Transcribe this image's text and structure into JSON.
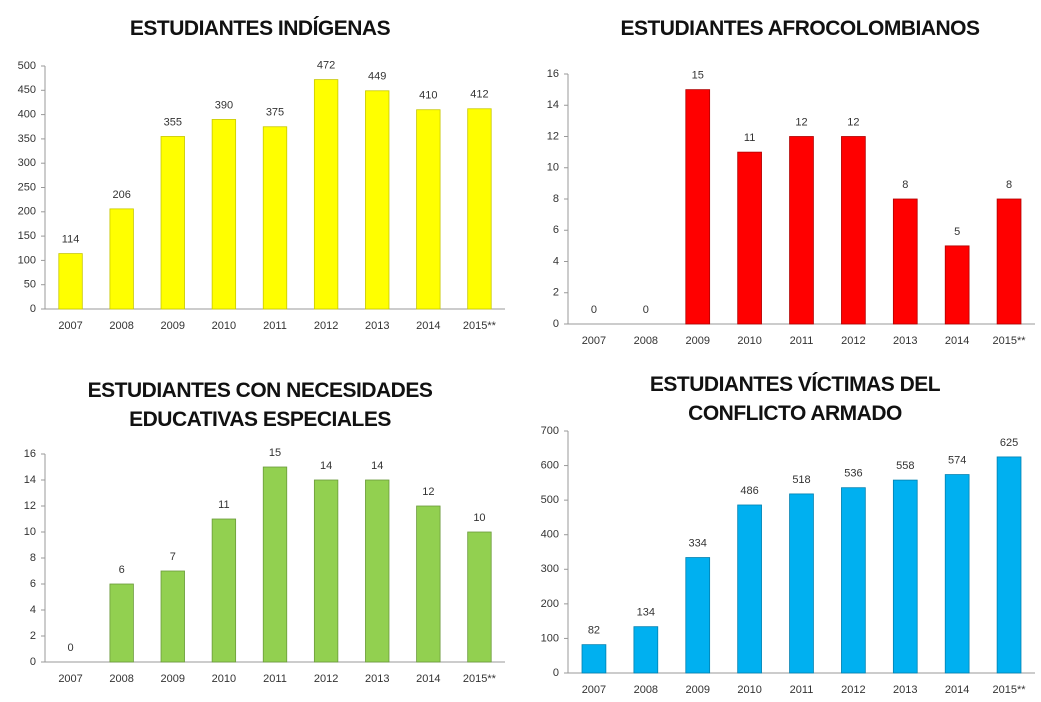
{
  "chart_data": [
    {
      "type": "bar",
      "title": "ESTUDIANTES INDÍGENAS",
      "categories": [
        "2007",
        "2008",
        "2009",
        "2010",
        "2011",
        "2012",
        "2013",
        "2014",
        "2015**"
      ],
      "values": [
        114,
        206,
        355,
        390,
        375,
        472,
        449,
        410,
        412
      ],
      "color": "#ffff00",
      "ylim": [
        0,
        500
      ],
      "yticks": [
        0,
        50,
        100,
        150,
        200,
        250,
        300,
        350,
        400,
        450,
        500
      ]
    },
    {
      "type": "bar",
      "title": "ESTUDIANTES AFROCOLOMBIANOS",
      "categories": [
        "2007",
        "2008",
        "2009",
        "2010",
        "2011",
        "2012",
        "2013",
        "2014",
        "2015**"
      ],
      "values": [
        0,
        0,
        15,
        11,
        12,
        12,
        8,
        5,
        8
      ],
      "color": "#ff0000",
      "ylim": [
        0,
        16
      ],
      "yticks": [
        0,
        2,
        4,
        6,
        8,
        10,
        12,
        14,
        16
      ]
    },
    {
      "type": "bar",
      "title": "ESTUDIANTES CON NECESIDADES EDUCATIVAS ESPECIALES",
      "categories": [
        "2007",
        "2008",
        "2009",
        "2010",
        "2011",
        "2012",
        "2013",
        "2014",
        "2015**"
      ],
      "values": [
        0,
        6,
        7,
        11,
        15,
        14,
        14,
        12,
        10
      ],
      "color": "#92d050",
      "ylim": [
        0,
        16
      ],
      "yticks": [
        0,
        2,
        4,
        6,
        8,
        10,
        12,
        14,
        16
      ]
    },
    {
      "type": "bar",
      "title": "ESTUDIANTES VÍCTIMAS DEL CONFLICTO ARMADO",
      "categories": [
        "2007",
        "2008",
        "2009",
        "2010",
        "2011",
        "2012",
        "2013",
        "2014",
        "2015**"
      ],
      "values": [
        82,
        134,
        334,
        486,
        518,
        536,
        558,
        574,
        625
      ],
      "color": "#00b0f0",
      "ylim": [
        0,
        700
      ],
      "yticks": [
        0,
        100,
        200,
        300,
        400,
        500,
        600,
        700
      ]
    }
  ]
}
